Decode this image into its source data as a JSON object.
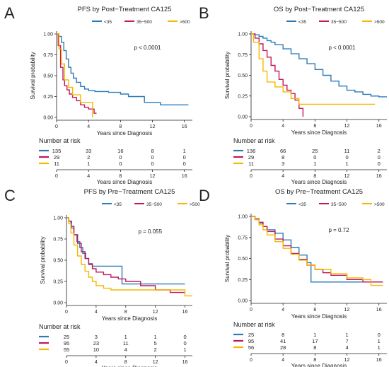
{
  "colors": {
    "low": "#2b7bba",
    "mid": "#c2185b",
    "high": "#f5b800"
  },
  "chart_data": [
    {
      "panel": "A",
      "type": "line",
      "title": "PFS by Post−Treatment CA125",
      "legend": {
        "placement": "top",
        "entries": [
          "<35",
          "35−500",
          ">500"
        ]
      },
      "xlabel": "Years since Diagnosis",
      "ylabel": "Survival probability",
      "xlim": [
        0,
        17
      ],
      "ylim": [
        0,
        1
      ],
      "xticks": [
        "0",
        "4",
        "8",
        "12",
        "16"
      ],
      "yticks": [
        "0.00",
        "0.25",
        "0.50",
        "0.75",
        "1.00"
      ],
      "pvalue": "p < 0.0001",
      "series": [
        {
          "name": "<35",
          "x": [
            0,
            0.3,
            0.6,
            0.9,
            1.2,
            1.5,
            1.8,
            2.1,
            2.5,
            3.0,
            3.5,
            4.0,
            4.8,
            5.5,
            6.5,
            8.0,
            9.0,
            11.0,
            13.0,
            16.5
          ],
          "y": [
            1.0,
            0.97,
            0.9,
            0.8,
            0.7,
            0.6,
            0.53,
            0.47,
            0.42,
            0.37,
            0.34,
            0.32,
            0.31,
            0.31,
            0.3,
            0.28,
            0.25,
            0.18,
            0.15,
            0.15
          ]
        },
        {
          "name": "35−500",
          "x": [
            0,
            0.2,
            0.5,
            0.8,
            1.0,
            1.3,
            1.6,
            2.0,
            2.5,
            3.0,
            3.5,
            4.0,
            4.7,
            5.0
          ],
          "y": [
            1.0,
            0.86,
            0.6,
            0.45,
            0.38,
            0.33,
            0.28,
            0.24,
            0.2,
            0.15,
            0.12,
            0.1,
            0.05,
            0.05
          ]
        },
        {
          "name": ">500",
          "x": [
            0,
            0.3,
            0.6,
            1.0,
            1.5,
            2.0,
            3.0,
            4.0,
            4.5
          ],
          "y": [
            1.0,
            0.82,
            0.64,
            0.45,
            0.36,
            0.27,
            0.18,
            0.18,
            0.0
          ]
        }
      ],
      "risk_table": {
        "title": "Number at risk",
        "times": [
          "0",
          "4",
          "8",
          "12",
          "16"
        ],
        "rows": [
          {
            "values": [
              "135",
              "33",
              "16",
              "8",
              "1"
            ]
          },
          {
            "values": [
              "29",
              "2",
              "0",
              "0",
              "0"
            ]
          },
          {
            "values": [
              "11",
              "1",
              "0",
              "0",
              "0"
            ]
          }
        ]
      }
    },
    {
      "panel": "B",
      "type": "line",
      "title": "OS by Post−Treatment CA125",
      "legend": {
        "placement": "top",
        "entries": [
          "<35",
          "35−500",
          ">500"
        ]
      },
      "xlabel": "Years since Diagnosis",
      "ylabel": "Survival probability",
      "xlim": [
        0,
        17
      ],
      "ylim": [
        0,
        1
      ],
      "xticks": [
        "0",
        "4",
        "8",
        "12",
        "16"
      ],
      "yticks": [
        "0.00",
        "0.25",
        "0.50",
        "0.75",
        "1.00"
      ],
      "pvalue": "p < 0.0001",
      "series": [
        {
          "name": "<35",
          "x": [
            0,
            0.5,
            1.0,
            1.5,
            2.0,
            2.5,
            3.0,
            4.0,
            5.0,
            6.0,
            7.0,
            8.0,
            9.0,
            10.0,
            11.0,
            12.0,
            13.0,
            14.0,
            15.0,
            16.0,
            17.0
          ],
          "y": [
            1.0,
            0.99,
            0.97,
            0.95,
            0.92,
            0.9,
            0.87,
            0.82,
            0.76,
            0.7,
            0.64,
            0.57,
            0.5,
            0.43,
            0.37,
            0.32,
            0.3,
            0.27,
            0.25,
            0.24,
            0.24
          ]
        },
        {
          "name": "35−500",
          "x": [
            0,
            0.5,
            1.0,
            1.5,
            2.0,
            2.5,
            3.0,
            3.5,
            4.0,
            4.5,
            5.0,
            5.5,
            6.0,
            6.5
          ],
          "y": [
            1.0,
            0.95,
            0.88,
            0.8,
            0.72,
            0.62,
            0.55,
            0.45,
            0.38,
            0.32,
            0.28,
            0.2,
            0.1,
            0.0
          ]
        },
        {
          "name": ">500",
          "x": [
            0,
            0.3,
            1.0,
            1.5,
            2.0,
            3.0,
            4.0,
            5.0,
            6.0,
            7.0,
            10.0,
            15.5
          ],
          "y": [
            1.0,
            0.9,
            0.7,
            0.55,
            0.42,
            0.36,
            0.3,
            0.22,
            0.15,
            0.15,
            0.15,
            0.15
          ]
        }
      ],
      "risk_table": {
        "title": "Number at risk",
        "times": [
          "0",
          "4",
          "8",
          "12",
          "16"
        ],
        "rows": [
          {
            "values": [
              "136",
              "66",
              "25",
              "11",
              "2"
            ]
          },
          {
            "values": [
              "29",
              "8",
              "0",
              "0",
              "0"
            ]
          },
          {
            "values": [
              "11",
              "3",
              "1",
              "1",
              "0"
            ]
          }
        ]
      }
    },
    {
      "panel": "C",
      "type": "line",
      "title": "PFS by Pre−Treatment CA125",
      "legend": {
        "placement": "top",
        "entries": [
          "<35",
          "35−500",
          ">500"
        ]
      },
      "xlabel": "Years since Diagnosis",
      "ylabel": "Survival probability",
      "xlim": [
        0,
        17
      ],
      "ylim": [
        0,
        1
      ],
      "xticks": [
        "0",
        "4",
        "8",
        "12",
        "16"
      ],
      "yticks": [
        "0.00",
        "0.25",
        "0.50",
        "0.75",
        "1.00"
      ],
      "pvalue": "p = 0.055",
      "series": [
        {
          "name": "<35",
          "x": [
            0,
            0.3,
            0.7,
            1.0,
            1.4,
            1.8,
            2.2,
            2.6,
            3.0,
            3.5,
            4.0,
            5.0,
            6.0,
            7.0,
            7.5,
            8.0,
            10.0,
            12.0,
            14.0,
            16.0
          ],
          "y": [
            1.0,
            0.96,
            0.88,
            0.8,
            0.72,
            0.65,
            0.58,
            0.52,
            0.46,
            0.43,
            0.43,
            0.43,
            0.43,
            0.43,
            0.22,
            0.22,
            0.22,
            0.22,
            0.22,
            0.22
          ]
        },
        {
          "name": "35−500",
          "x": [
            0,
            0.3,
            0.6,
            1.0,
            1.5,
            2.0,
            2.5,
            3.0,
            3.5,
            4.0,
            5.0,
            6.0,
            7.0,
            8.0,
            10.0,
            12.0,
            14.0,
            16.0
          ],
          "y": [
            1.0,
            0.96,
            0.9,
            0.8,
            0.7,
            0.6,
            0.52,
            0.45,
            0.4,
            0.36,
            0.33,
            0.3,
            0.28,
            0.25,
            0.2,
            0.15,
            0.12,
            0.12
          ]
        },
        {
          "name": ">500",
          "x": [
            0,
            0.3,
            0.6,
            1.0,
            1.5,
            2.0,
            2.5,
            3.0,
            3.5,
            4.0,
            5.0,
            6.0,
            8.0,
            10.0,
            12.0,
            14.0,
            16.0,
            17.0
          ],
          "y": [
            1.0,
            0.93,
            0.82,
            0.68,
            0.55,
            0.45,
            0.37,
            0.3,
            0.25,
            0.2,
            0.17,
            0.15,
            0.15,
            0.15,
            0.15,
            0.15,
            0.08,
            0.08
          ]
        }
      ],
      "risk_table": {
        "title": "Number at risk",
        "times": [
          "0",
          "4",
          "8",
          "12",
          "16"
        ],
        "rows": [
          {
            "values": [
              "25",
              "3",
              "1",
              "1",
              "0"
            ]
          },
          {
            "values": [
              "95",
              "23",
              "11",
              "5",
              "0"
            ]
          },
          {
            "values": [
              "55",
              "10",
              "4",
              "2",
              "1"
            ]
          }
        ]
      }
    },
    {
      "panel": "D",
      "type": "line",
      "title": "OS by Pre−Treatment CA125",
      "legend": {
        "placement": "top",
        "entries": [
          "<35",
          "35−500",
          ">500"
        ]
      },
      "xlabel": "Years since Diagnosis",
      "ylabel": "Survival probability",
      "xlim": [
        0,
        17
      ],
      "ylim": [
        0,
        1
      ],
      "xticks": [
        "0",
        "4",
        "8",
        "12",
        "16"
      ],
      "yticks": [
        "0.00",
        "0.25",
        "0.50",
        "0.75",
        "1.00"
      ],
      "pvalue": "p = 0.72",
      "series": [
        {
          "name": "<35",
          "x": [
            0,
            0.5,
            1.0,
            1.5,
            2.0,
            3.0,
            4.0,
            5.0,
            6.0,
            7.0,
            7.5,
            8.0,
            12.0,
            14.0,
            16.5
          ],
          "y": [
            1.0,
            0.96,
            0.92,
            0.88,
            0.84,
            0.8,
            0.72,
            0.63,
            0.54,
            0.45,
            0.22,
            0.22,
            0.22,
            0.22,
            0.22
          ]
        },
        {
          "name": "35−500",
          "x": [
            0,
            0.5,
            1.0,
            1.5,
            2.0,
            3.0,
            4.0,
            5.0,
            6.0,
            7.0,
            8.0,
            9.0,
            10.0,
            12.0,
            14.0,
            16.5
          ],
          "y": [
            1.0,
            0.97,
            0.93,
            0.88,
            0.82,
            0.73,
            0.65,
            0.56,
            0.49,
            0.42,
            0.37,
            0.33,
            0.3,
            0.25,
            0.22,
            0.22
          ]
        },
        {
          "name": ">500",
          "x": [
            0,
            0.5,
            1.0,
            1.5,
            2.0,
            3.0,
            4.0,
            5.0,
            6.0,
            7.0,
            8.0,
            10.0,
            12.0,
            14.0,
            15.0,
            16.5
          ],
          "y": [
            1.0,
            0.96,
            0.9,
            0.84,
            0.78,
            0.7,
            0.62,
            0.55,
            0.48,
            0.42,
            0.37,
            0.32,
            0.27,
            0.25,
            0.18,
            0.18
          ]
        }
      ],
      "risk_table": {
        "title": "Number at risk",
        "times": [
          "0",
          "4",
          "8",
          "12",
          "16"
        ],
        "rows": [
          {
            "values": [
              "25",
              "8",
              "1",
              "1",
              "0"
            ]
          },
          {
            "values": [
              "95",
              "41",
              "17",
              "7",
              "1"
            ]
          },
          {
            "values": [
              "56",
              "28",
              "8",
              "4",
              "1"
            ]
          }
        ]
      }
    }
  ]
}
